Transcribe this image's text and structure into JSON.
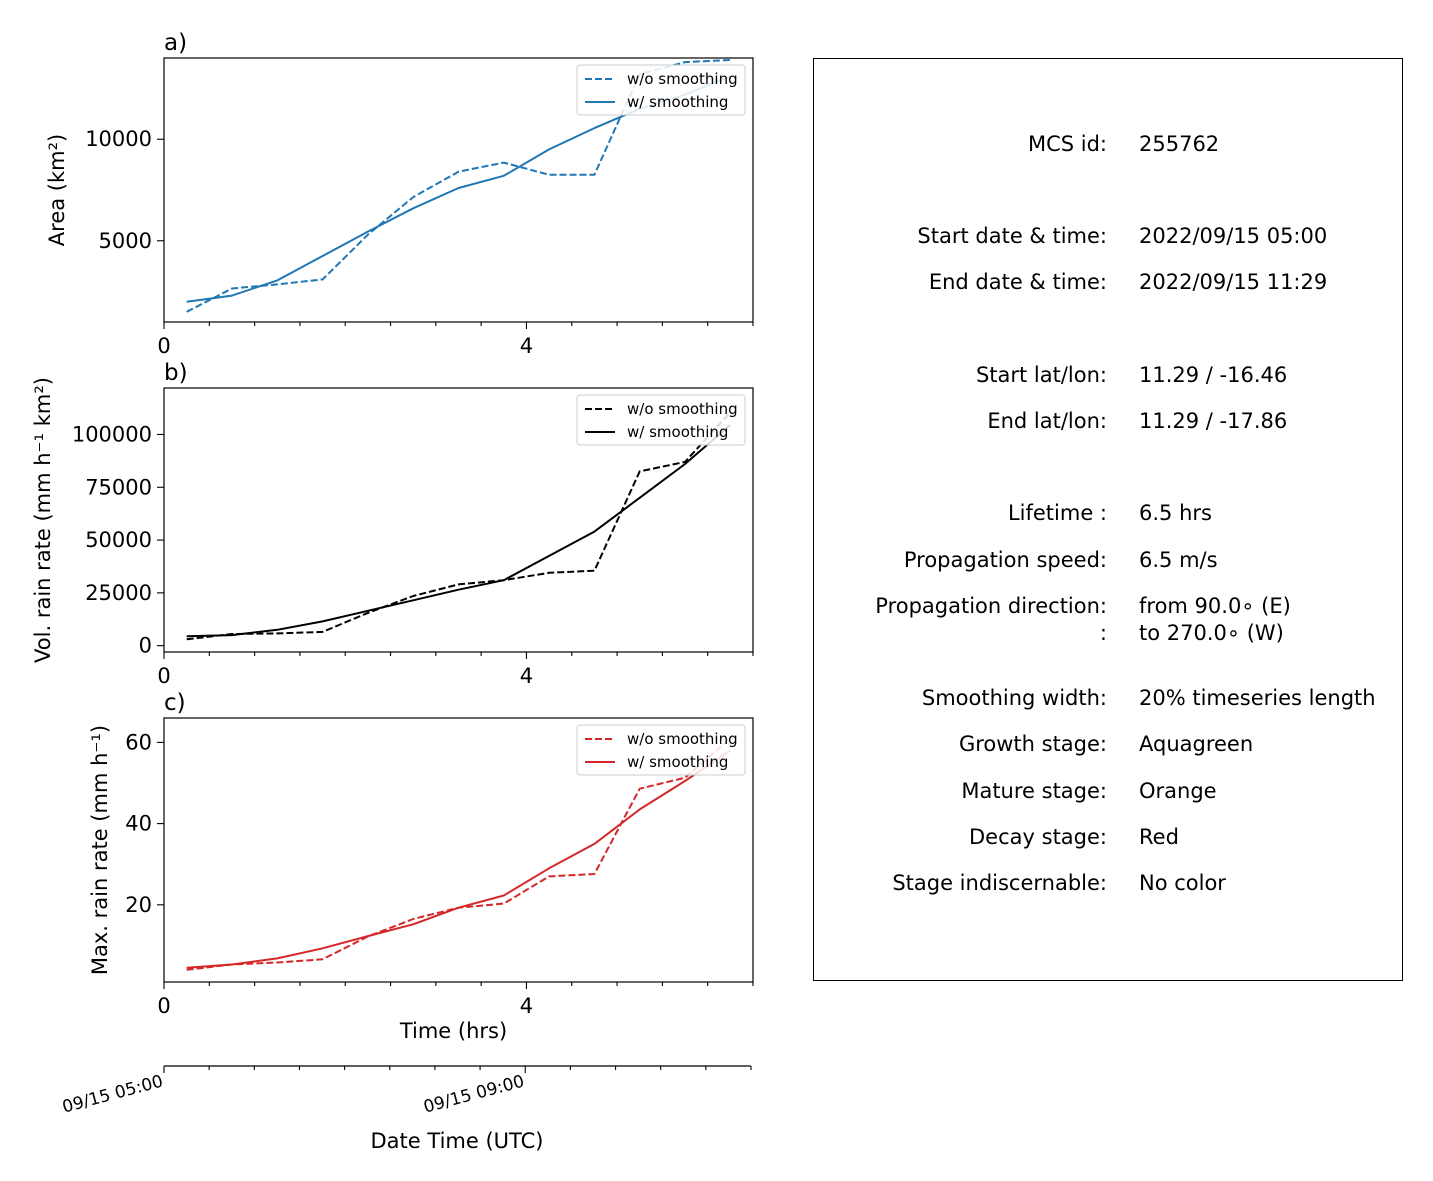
{
  "chart_data": [
    {
      "type": "line",
      "panel_label": "a)",
      "ylabel": "Area  (km²)",
      "xlim": [
        0,
        6.5
      ],
      "ylim": [
        1000,
        14000
      ],
      "x_ticks": [
        0,
        4
      ],
      "y_ticks": [
        5000,
        10000
      ],
      "legend_placement": "top-right",
      "series": [
        {
          "name": "w/o smoothing",
          "style": "dashed",
          "color": "#1f77b4",
          "x": [
            0.25,
            0.75,
            1.25,
            1.75,
            2.25,
            2.75,
            3.25,
            3.75,
            4.25,
            4.75,
            5.25,
            5.75,
            6.25
          ],
          "y": [
            1500,
            2650,
            2850,
            3100,
            5300,
            7150,
            8400,
            8850,
            8250,
            8250,
            13200,
            13800,
            13900
          ]
        },
        {
          "name": "w/ smoothing",
          "style": "solid",
          "color": "#1f77b4",
          "x": [
            0.25,
            0.75,
            1.25,
            1.75,
            2.25,
            2.75,
            3.25,
            3.75,
            4.25,
            4.75,
            5.25,
            5.75,
            6.25
          ],
          "y": [
            2000,
            2300,
            3050,
            4250,
            5450,
            6600,
            7600,
            8200,
            9500,
            10550,
            11500,
            12200,
            13100
          ]
        }
      ]
    },
    {
      "type": "line",
      "panel_label": "b)",
      "ylabel": "Vol. rain rate (mm h⁻¹ km²)",
      "xlim": [
        0,
        6.5
      ],
      "ylim": [
        -3000,
        122000
      ],
      "x_ticks": [
        0,
        4
      ],
      "y_ticks": [
        0,
        25000,
        50000,
        75000,
        100000
      ],
      "legend_placement": "top-right",
      "series": [
        {
          "name": "w/o smoothing",
          "style": "dashed",
          "color": "#000000",
          "x": [
            0.25,
            0.75,
            1.25,
            1.75,
            2.25,
            2.75,
            3.25,
            3.75,
            4.25,
            4.75,
            5.25,
            5.75,
            6.25
          ],
          "y": [
            3000,
            5500,
            5800,
            6500,
            15500,
            23500,
            29000,
            31000,
            34500,
            35500,
            82500,
            87000,
            110500
          ]
        },
        {
          "name": "w/ smoothing",
          "style": "solid",
          "color": "#000000",
          "x": [
            0.25,
            0.75,
            1.25,
            1.75,
            2.25,
            2.75,
            3.25,
            3.75,
            4.25,
            4.75,
            5.25,
            5.75,
            6.25
          ],
          "y": [
            4500,
            5000,
            7500,
            11500,
            16500,
            21500,
            26500,
            31000,
            42500,
            54000,
            70000,
            86000,
            104500
          ]
        }
      ]
    },
    {
      "type": "line",
      "panel_label": "c)",
      "ylabel": "Max. rain rate  (mm h⁻¹)",
      "xlabel": "Time (hrs)",
      "xlim": [
        0,
        6.5
      ],
      "ylim": [
        1,
        66
      ],
      "x_ticks": [
        0,
        4
      ],
      "y_ticks": [
        20,
        40,
        60
      ],
      "legend_placement": "top-right",
      "series": [
        {
          "name": "w/o smoothing",
          "style": "dashed",
          "color": "#d62728",
          "x": [
            0.25,
            0.75,
            1.25,
            1.75,
            2.25,
            2.75,
            3.25,
            3.75,
            4.25,
            4.75,
            5.25,
            5.75,
            6.25
          ],
          "y": [
            4.0,
            5.3,
            5.8,
            6.6,
            12.2,
            16.5,
            19.3,
            20.3,
            27.0,
            27.6,
            48.6,
            51.3,
            61.0
          ]
        },
        {
          "name": "w/ smoothing",
          "style": "solid",
          "color": "#d62728",
          "x": [
            0.25,
            0.75,
            1.25,
            1.75,
            2.25,
            2.75,
            3.25,
            3.75,
            4.25,
            4.75,
            5.25,
            5.75,
            6.25
          ],
          "y": [
            4.5,
            5.3,
            6.8,
            9.3,
            12.3,
            15.2,
            19.3,
            22.3,
            29.0,
            35.0,
            43.5,
            50.5,
            58.0
          ]
        }
      ]
    }
  ],
  "datetime_axis": {
    "xlabel": "Date Time (UTC)",
    "tick_labels": [
      "09/15 05:00",
      "09/15 09:00"
    ],
    "tick_hours": [
      0,
      4
    ]
  },
  "info": {
    "rows": [
      {
        "label": "MCS id:",
        "value": "255762"
      },
      {
        "label": "Start date & time:",
        "value": "2022/09/15 05:00"
      },
      {
        "label": "End date & time:",
        "value": "2022/09/15 11:29"
      },
      {
        "label": "Start lat/lon:",
        "value": "11.29 / -16.46"
      },
      {
        "label": "End lat/lon:",
        "value": "11.29 / -17.86"
      },
      {
        "label": "Lifetime :",
        "value": "6.5 hrs"
      },
      {
        "label": "Propagation speed:",
        "value": "6.5 m/s"
      },
      {
        "label": "Propagation direction:",
        "value": "from  90.0∘ (E)"
      },
      {
        "label": ":",
        "value": "to   270.0∘ (W)"
      },
      {
        "label": "Smoothing width:",
        "value": "20% timeseries length"
      },
      {
        "label": "Growth stage:",
        "value": "Aquagreen"
      },
      {
        "label": "Mature stage:",
        "value": "Orange"
      },
      {
        "label": "Decay stage:",
        "value": "Red"
      },
      {
        "label": "Stage indiscernable:",
        "value": "No color"
      }
    ]
  }
}
